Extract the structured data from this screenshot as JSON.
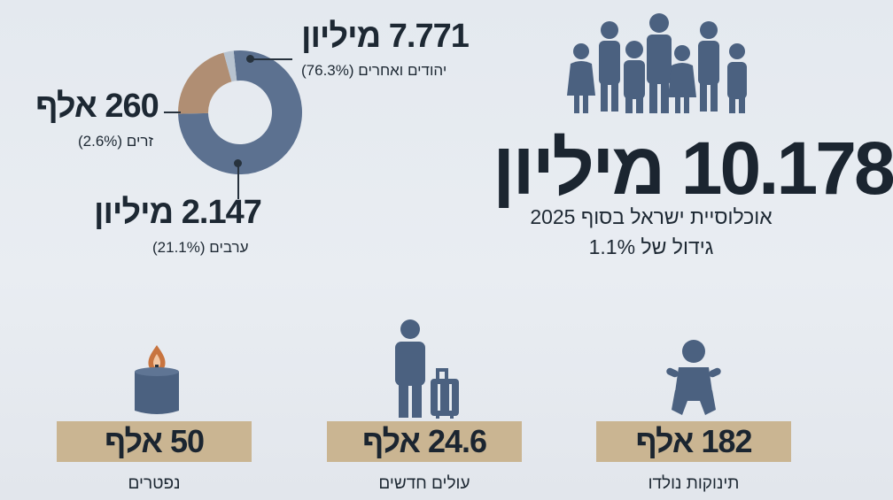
{
  "colors": {
    "jews": "#5c7190",
    "arabs": "#b08e73",
    "foreigners": "#b7c3d0",
    "icon": "#4b6180",
    "stat_box": "#cab592",
    "flame": "#c8743f"
  },
  "chart_data": {
    "type": "pie",
    "donut": true,
    "segments": [
      {
        "label": "יהודים ואחרים",
        "value": 7.771,
        "unit": "מיליון",
        "percent": 76.3,
        "color": "#5c7190"
      },
      {
        "label": "ערבים",
        "value": 2.147,
        "unit": "מיליון",
        "percent": 21.1,
        "color": "#b08e73"
      },
      {
        "label": "זרים",
        "value": 260,
        "unit": "אלף",
        "percent": 2.6,
        "color": "#b7c3d0"
      }
    ],
    "labels": {
      "jews_big": "7.771 מיליון",
      "jews_sub": "יהודים ואחרים (76.3%)",
      "arabs_big": "2.147 מיליון",
      "arabs_sub": "ערבים (21.1%)",
      "foreigners_big": "260 אלף",
      "foreigners_sub": "זרים (2.6%)"
    }
  },
  "headline": {
    "value": "10.178 מיליון",
    "subtitle": "אוכלוסיית ישראל בסוף 2025",
    "growth": "גידול של 1.1%"
  },
  "stats": [
    {
      "value": "182 אלף",
      "label": "תינוקות נולדו",
      "icon": "baby-icon"
    },
    {
      "value": "24.6 אלף",
      "label": "עולים חדשים",
      "icon": "traveler-with-suitcase-icon"
    },
    {
      "value": "50 אלף",
      "label": "נפטרים",
      "icon": "memorial-candle-icon"
    }
  ]
}
